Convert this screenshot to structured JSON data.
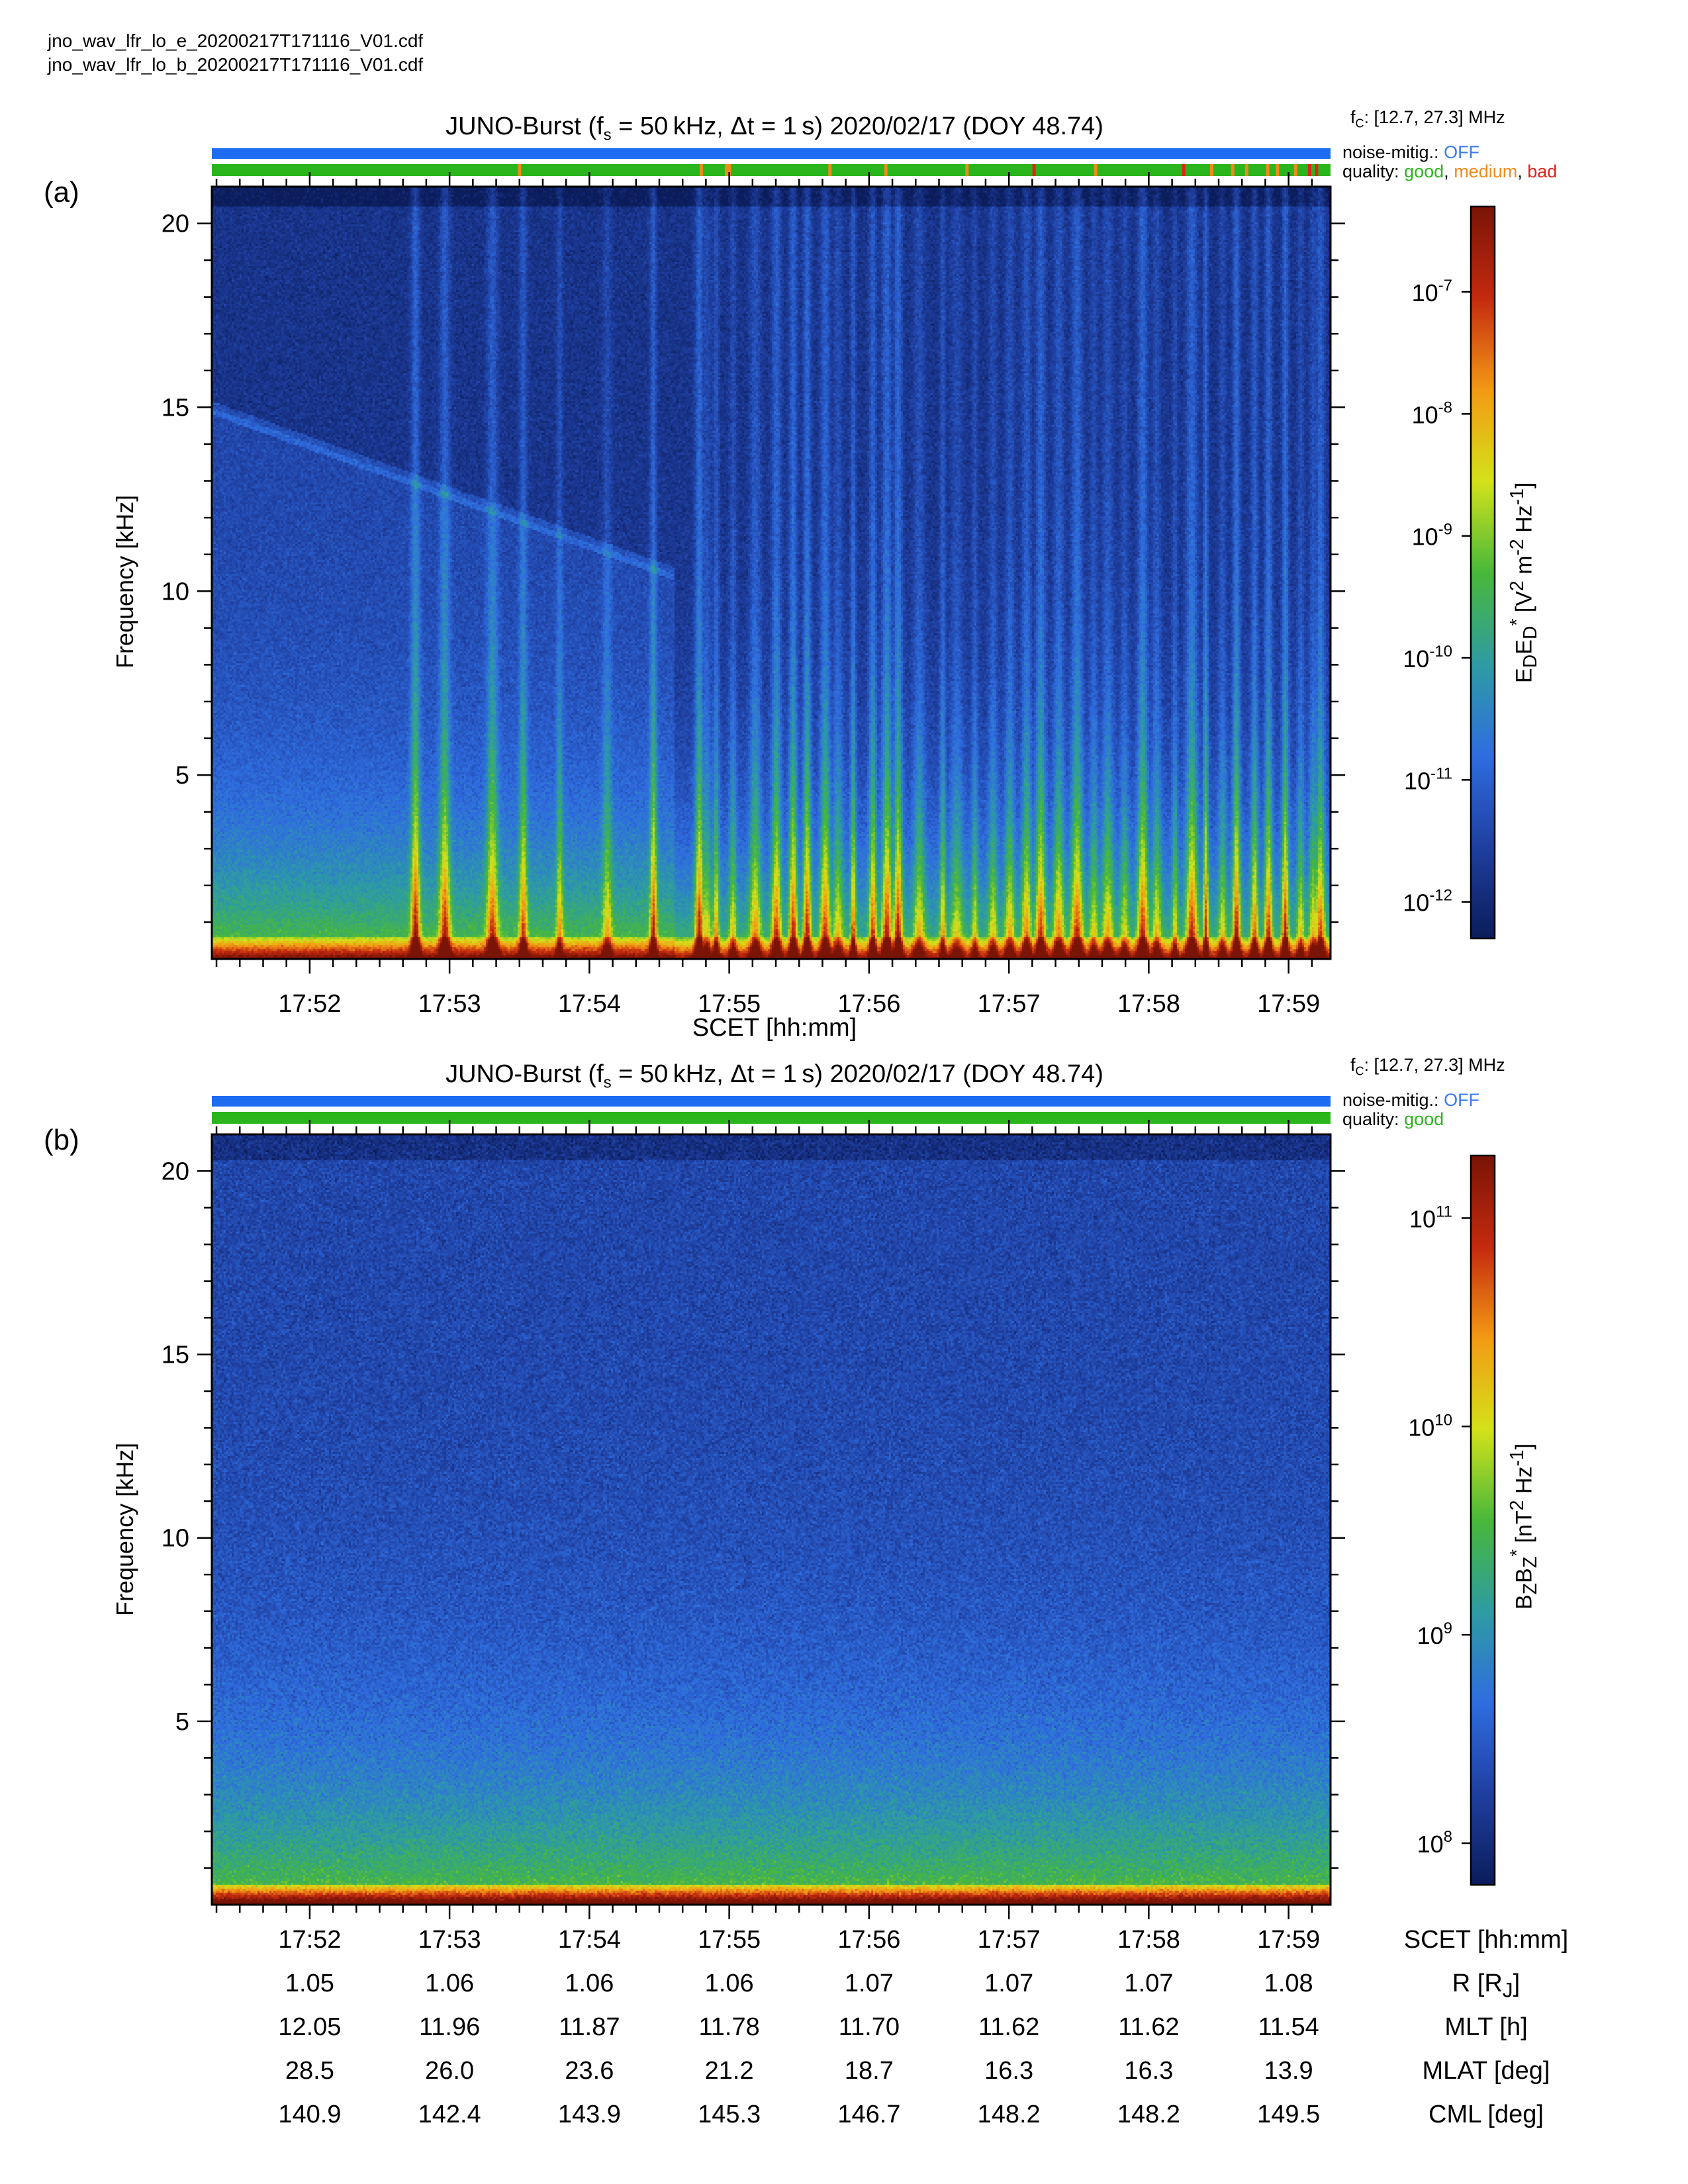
{
  "files": [
    "jno_wav_lfr_lo_e_20200217T171116_V01.cdf",
    "jno_wav_lfr_lo_b_20200217T171116_V01.cdf"
  ],
  "colors": {
    "noise_bar": "#1d6cf2",
    "quality_good": "#2ab51c",
    "quality_medium": "#f08a1a",
    "quality_bad": "#e0231b",
    "colormap": [
      "#0b1c5a",
      "#1f3fa0",
      "#2f6de0",
      "#2d9ca3",
      "#48b83a",
      "#d4e21a",
      "#f39a14",
      "#c52a0f",
      "#7a1406"
    ]
  },
  "panels": [
    {
      "id": "a",
      "label": "(a)",
      "title_parts": {
        "pre": "JUNO-Burst (f",
        "sub": "s",
        "post": " = 50 kHz, Δt = 1 s)  2020/02/17 (DOY 48.74)"
      },
      "fc_text": {
        "pre": "f",
        "sub": "C",
        "post": ": [12.7, 27.3] MHz"
      },
      "noise_mitig": {
        "label": "noise-mitig.:",
        "value": "OFF"
      },
      "quality": {
        "label": "quality:",
        "good": "good",
        "medium": "medium",
        "bad": "bad",
        "sep": ","
      },
      "ylabel": "Frequency [kHz]",
      "xlabel": "SCET [hh:mm]",
      "colorbar": {
        "label_html": "E<sub>D</sub>E<sub>D</sub><sup>*</sup> [V<sup>2</sup> m<sup>-2</sup> Hz<sup>-1</sup>]",
        "ticks": [
          {
            "base": "10",
            "exp": "-7",
            "log": -7
          },
          {
            "base": "10",
            "exp": "-8",
            "log": -8
          },
          {
            "base": "10",
            "exp": "-9",
            "log": -9
          },
          {
            "base": "10",
            "exp": "-10",
            "log": -10
          },
          {
            "base": "10",
            "exp": "-11",
            "log": -11
          },
          {
            "base": "10",
            "exp": "-12",
            "log": -12
          }
        ],
        "range_log": [
          -12.3,
          -6.3
        ]
      }
    },
    {
      "id": "b",
      "label": "(b)",
      "title_parts": {
        "pre": "JUNO-Burst (f",
        "sub": "s",
        "post": " = 50 kHz, Δt = 1 s)  2020/02/17 (DOY 48.74)"
      },
      "fc_text": {
        "pre": "f",
        "sub": "C",
        "post": ": [12.7, 27.3] MHz"
      },
      "noise_mitig": {
        "label": "noise-mitig.:",
        "value": "OFF"
      },
      "quality": {
        "label": "quality:",
        "good": "good"
      },
      "ylabel": "Frequency [kHz]",
      "colorbar": {
        "label_html": "B<sub>Z</sub>B<sub>Z</sub><sup>*</sup> [nT<sup>2</sup> Hz<sup>-1</sup>]",
        "ticks": [
          {
            "base": "10",
            "exp": "11",
            "log": 11
          },
          {
            "base": "10",
            "exp": "10",
            "log": 10
          },
          {
            "base": "10",
            "exp": "9",
            "log": 9
          },
          {
            "base": "10",
            "exp": "8",
            "log": 8
          }
        ],
        "range_log": [
          7.8,
          11.3
        ]
      }
    }
  ],
  "chart_data": [
    {
      "type": "heatmap",
      "panel": "a",
      "title": "JUNO-Burst (fs = 50 kHz, Δt = 1 s) 2020/02/17 (DOY 48.74)",
      "xlabel": "SCET [hh:mm]",
      "ylabel": "Frequency [kHz]",
      "x_range_min": [
        1.3,
        9.3
      ],
      "x_ticks": [
        "17:52",
        "17:53",
        "17:54",
        "17:55",
        "17:56",
        "17:57",
        "17:58",
        "17:59"
      ],
      "x_tick_min": [
        2,
        3,
        4,
        5,
        6,
        7,
        8,
        9
      ],
      "ylim": [
        0,
        21
      ],
      "y_ticks": [
        5,
        10,
        15,
        20
      ],
      "colorbar_label": "EDED* [V2 m-2 Hz-1]",
      "colorbar_log_range": [
        -12.3,
        -6.3
      ],
      "background_log_high_freq": -11.8,
      "background_log_low_freq": -9.3,
      "cutoff_line": {
        "from": {
          "min": 1.3,
          "kHz": 15.0
        },
        "to": {
          "min": 4.6,
          "kHz": 10.5
        }
      },
      "burst_times_min": [
        2.75,
        2.96,
        3.3,
        3.52,
        3.78,
        4.12,
        4.45,
        4.78,
        4.83,
        4.9,
        5.02,
        5.18,
        5.33,
        5.45,
        5.55,
        5.68,
        5.77,
        5.88,
        6.02,
        6.12,
        6.2,
        6.35,
        6.52,
        6.62,
        6.75,
        6.88,
        7.0,
        7.12,
        7.22,
        7.35,
        7.48,
        7.6,
        7.7,
        7.82,
        7.95,
        8.05,
        8.18,
        8.3,
        8.4,
        8.52,
        8.62,
        8.75,
        8.85,
        8.97,
        9.08,
        9.17,
        9.22
      ],
      "quality_marks_min": {
        "medium": [
          3.5,
          4.8,
          4.98,
          5.0,
          5.72,
          6.12,
          6.7,
          7.62,
          8.45,
          8.6,
          8.7,
          8.85,
          8.92,
          9.05
        ],
        "bad": [
          7.18,
          8.25,
          9.15,
          9.2
        ]
      }
    },
    {
      "type": "heatmap",
      "panel": "b",
      "title": "JUNO-Burst (fs = 50 kHz, Δt = 1 s) 2020/02/17 (DOY 48.74)",
      "ylabel": "Frequency [kHz]",
      "x_range_min": [
        1.3,
        9.3
      ],
      "x_ticks": [
        "17:52",
        "17:53",
        "17:54",
        "17:55",
        "17:56",
        "17:57",
        "17:58",
        "17:59"
      ],
      "ylim": [
        0,
        21
      ],
      "y_ticks": [
        5,
        10,
        15,
        20
      ],
      "colorbar_label": "BZBZ* [nT2 Hz-1]",
      "colorbar_log_range": [
        7.8,
        11.3
      ],
      "background_log_high_freq": 8.3,
      "background_log_low_freq": 9.7
    }
  ],
  "ephemeris": {
    "rows": [
      {
        "label": "SCET [hh:mm]",
        "values": [
          "17:52",
          "17:53",
          "17:54",
          "17:55",
          "17:56",
          "17:57",
          "17:58",
          "17:59"
        ]
      },
      {
        "label_html": "R [R<sub>J</sub>]",
        "values": [
          "1.05",
          "1.06",
          "1.06",
          "1.06",
          "1.07",
          "1.07",
          "1.07",
          "1.08"
        ]
      },
      {
        "label": "MLT [h]",
        "values": [
          "12.05",
          "11.96",
          "11.87",
          "11.78",
          "11.70",
          "11.62",
          "11.62",
          "11.54"
        ]
      },
      {
        "label": "MLAT [deg]",
        "values": [
          "28.5",
          "26.0",
          "23.6",
          "21.2",
          "18.7",
          "16.3",
          "16.3",
          "13.9"
        ]
      },
      {
        "label": "CML [deg]",
        "values": [
          "140.9",
          "142.4",
          "143.9",
          "145.3",
          "146.7",
          "148.2",
          "148.2",
          "149.5"
        ]
      }
    ]
  }
}
